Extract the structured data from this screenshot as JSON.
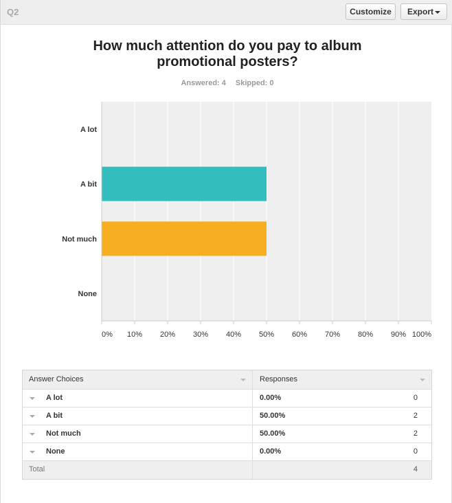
{
  "header": {
    "question_id": "Q2",
    "customize_label": "Customize",
    "export_label": "Export"
  },
  "question": {
    "title": "How much attention do you pay to album promotional posters?",
    "answered": "Answered: 4",
    "skipped": "Skipped: 0"
  },
  "colors": {
    "a_bit": "#33bdbd",
    "not_much": "#f7ae21",
    "plot_background": "#efefef",
    "gridline": "#ffffff"
  },
  "chart_data": {
    "type": "bar",
    "orientation": "horizontal",
    "categories": [
      "A lot",
      "A bit",
      "Not much",
      "None"
    ],
    "values": [
      0,
      50,
      50,
      0
    ],
    "title": "How much attention do you pay to album promotional posters?",
    "xlabel": "",
    "ylabel": "",
    "xlim": [
      0,
      100
    ],
    "ticks": [
      "0%",
      "10%",
      "20%",
      "30%",
      "40%",
      "50%",
      "60%",
      "70%",
      "80%",
      "90%",
      "100%"
    ],
    "grid": true,
    "bar_colors": [
      "#33bdbd",
      "#33bdbd",
      "#f7ae21",
      "#33bdbd"
    ]
  },
  "table": {
    "header_choice": "Answer Choices",
    "header_responses": "Responses",
    "rows": [
      {
        "label": "A lot",
        "percent": "0.00%",
        "count": "0"
      },
      {
        "label": "A bit",
        "percent": "50.00%",
        "count": "2"
      },
      {
        "label": "Not much",
        "percent": "50.00%",
        "count": "2"
      },
      {
        "label": "None",
        "percent": "0.00%",
        "count": "0"
      }
    ],
    "total_label": "Total",
    "total_count": "4"
  }
}
